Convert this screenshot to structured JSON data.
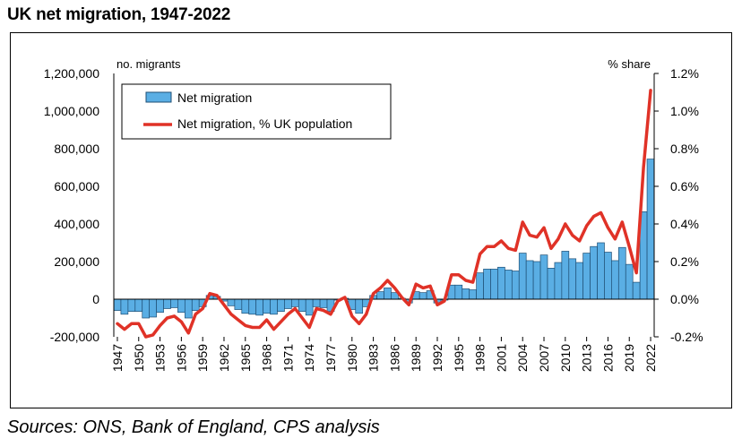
{
  "title": "UK net migration, 1947-2022",
  "source": "Sources: ONS, Bank of England, CPS analysis",
  "colors": {
    "bar_fill": "#5aaee4",
    "bar_stroke": "#1f4f75",
    "line": "#e03227"
  },
  "chart_data": {
    "type": "bar",
    "left_axis_unit": "no. migrants",
    "right_axis_unit": "% share",
    "y_left": {
      "min": -200000,
      "max": 1200000,
      "ticks": [
        1200000,
        1000000,
        800000,
        600000,
        400000,
        200000,
        0,
        -200000
      ],
      "tick_labels": [
        "1,200,000",
        "1,000,000",
        "800,000",
        "600,000",
        "400,000",
        "200,000",
        "0",
        "-200,000"
      ]
    },
    "y_right": {
      "min": -0.2,
      "max": 1.2,
      "ticks": [
        1.2,
        1.0,
        0.8,
        0.6,
        0.4,
        0.2,
        0.0,
        -0.2
      ],
      "tick_labels": [
        "1.2%",
        "1.0%",
        "0.8%",
        "0.6%",
        "0.4%",
        "0.2%",
        "0.0%",
        "-0.2%"
      ]
    },
    "x_tick_labels": [
      "1947",
      "1950",
      "1953",
      "1956",
      "1959",
      "1962",
      "1965",
      "1968",
      "1971",
      "1974",
      "1977",
      "1980",
      "1983",
      "1986",
      "1989",
      "1992",
      "1995",
      "1998",
      "2001",
      "2004",
      "2007",
      "2010",
      "2013",
      "2016",
      "2019",
      "2022"
    ],
    "legend": {
      "placement": "top-left"
    },
    "years": [
      1947,
      1948,
      1949,
      1950,
      1951,
      1952,
      1953,
      1954,
      1955,
      1956,
      1957,
      1958,
      1959,
      1960,
      1961,
      1962,
      1963,
      1964,
      1965,
      1966,
      1967,
      1968,
      1969,
      1970,
      1971,
      1972,
      1973,
      1974,
      1975,
      1976,
      1977,
      1978,
      1979,
      1980,
      1981,
      1982,
      1983,
      1984,
      1985,
      1986,
      1987,
      1988,
      1989,
      1990,
      1991,
      1992,
      1993,
      1994,
      1995,
      1996,
      1997,
      1998,
      1999,
      2000,
      2001,
      2002,
      2003,
      2004,
      2005,
      2006,
      2007,
      2008,
      2009,
      2010,
      2011,
      2012,
      2013,
      2014,
      2015,
      2016,
      2017,
      2018,
      2019,
      2020,
      2021,
      2022
    ],
    "series": [
      {
        "name": "Net migration",
        "kind": "bar",
        "axis": "left",
        "values": [
          -60000,
          -80000,
          -65000,
          -65000,
          -100000,
          -95000,
          -70000,
          -50000,
          -45000,
          -70000,
          -100000,
          -60000,
          -40000,
          20000,
          15000,
          -10000,
          -35000,
          -55000,
          -75000,
          -80000,
          -85000,
          -75000,
          -80000,
          -65000,
          -50000,
          -40000,
          -65000,
          -85000,
          -40000,
          -45000,
          -65000,
          -5000,
          5000,
          -55000,
          -75000,
          -40000,
          20000,
          40000,
          60000,
          35000,
          5000,
          -20000,
          40000,
          35000,
          45000,
          -20000,
          -5000,
          75000,
          75000,
          55000,
          50000,
          140000,
          160000,
          160000,
          170000,
          155000,
          150000,
          245000,
          205000,
          200000,
          235000,
          165000,
          195000,
          255000,
          215000,
          195000,
          245000,
          280000,
          300000,
          250000,
          205000,
          275000,
          185000,
          90000,
          465000,
          745000
        ]
      },
      {
        "name": "Net migration, % UK population",
        "kind": "line",
        "axis": "right",
        "values": [
          -0.13,
          -0.16,
          -0.13,
          -0.13,
          -0.2,
          -0.19,
          -0.14,
          -0.1,
          -0.09,
          -0.12,
          -0.18,
          -0.08,
          -0.05,
          0.03,
          0.02,
          -0.03,
          -0.08,
          -0.11,
          -0.14,
          -0.15,
          -0.15,
          -0.11,
          -0.16,
          -0.12,
          -0.08,
          -0.05,
          -0.1,
          -0.15,
          -0.05,
          -0.06,
          -0.08,
          -0.01,
          0.01,
          -0.09,
          -0.13,
          -0.08,
          0.03,
          0.06,
          0.1,
          0.06,
          0.01,
          -0.03,
          0.08,
          0.06,
          0.07,
          -0.03,
          -0.01,
          0.13,
          0.13,
          0.1,
          0.09,
          0.24,
          0.28,
          0.28,
          0.31,
          0.27,
          0.26,
          0.41,
          0.34,
          0.33,
          0.38,
          0.27,
          0.32,
          0.4,
          0.34,
          0.31,
          0.39,
          0.44,
          0.46,
          0.38,
          0.32,
          0.41,
          0.28,
          0.14,
          0.7,
          1.11
        ]
      }
    ]
  }
}
